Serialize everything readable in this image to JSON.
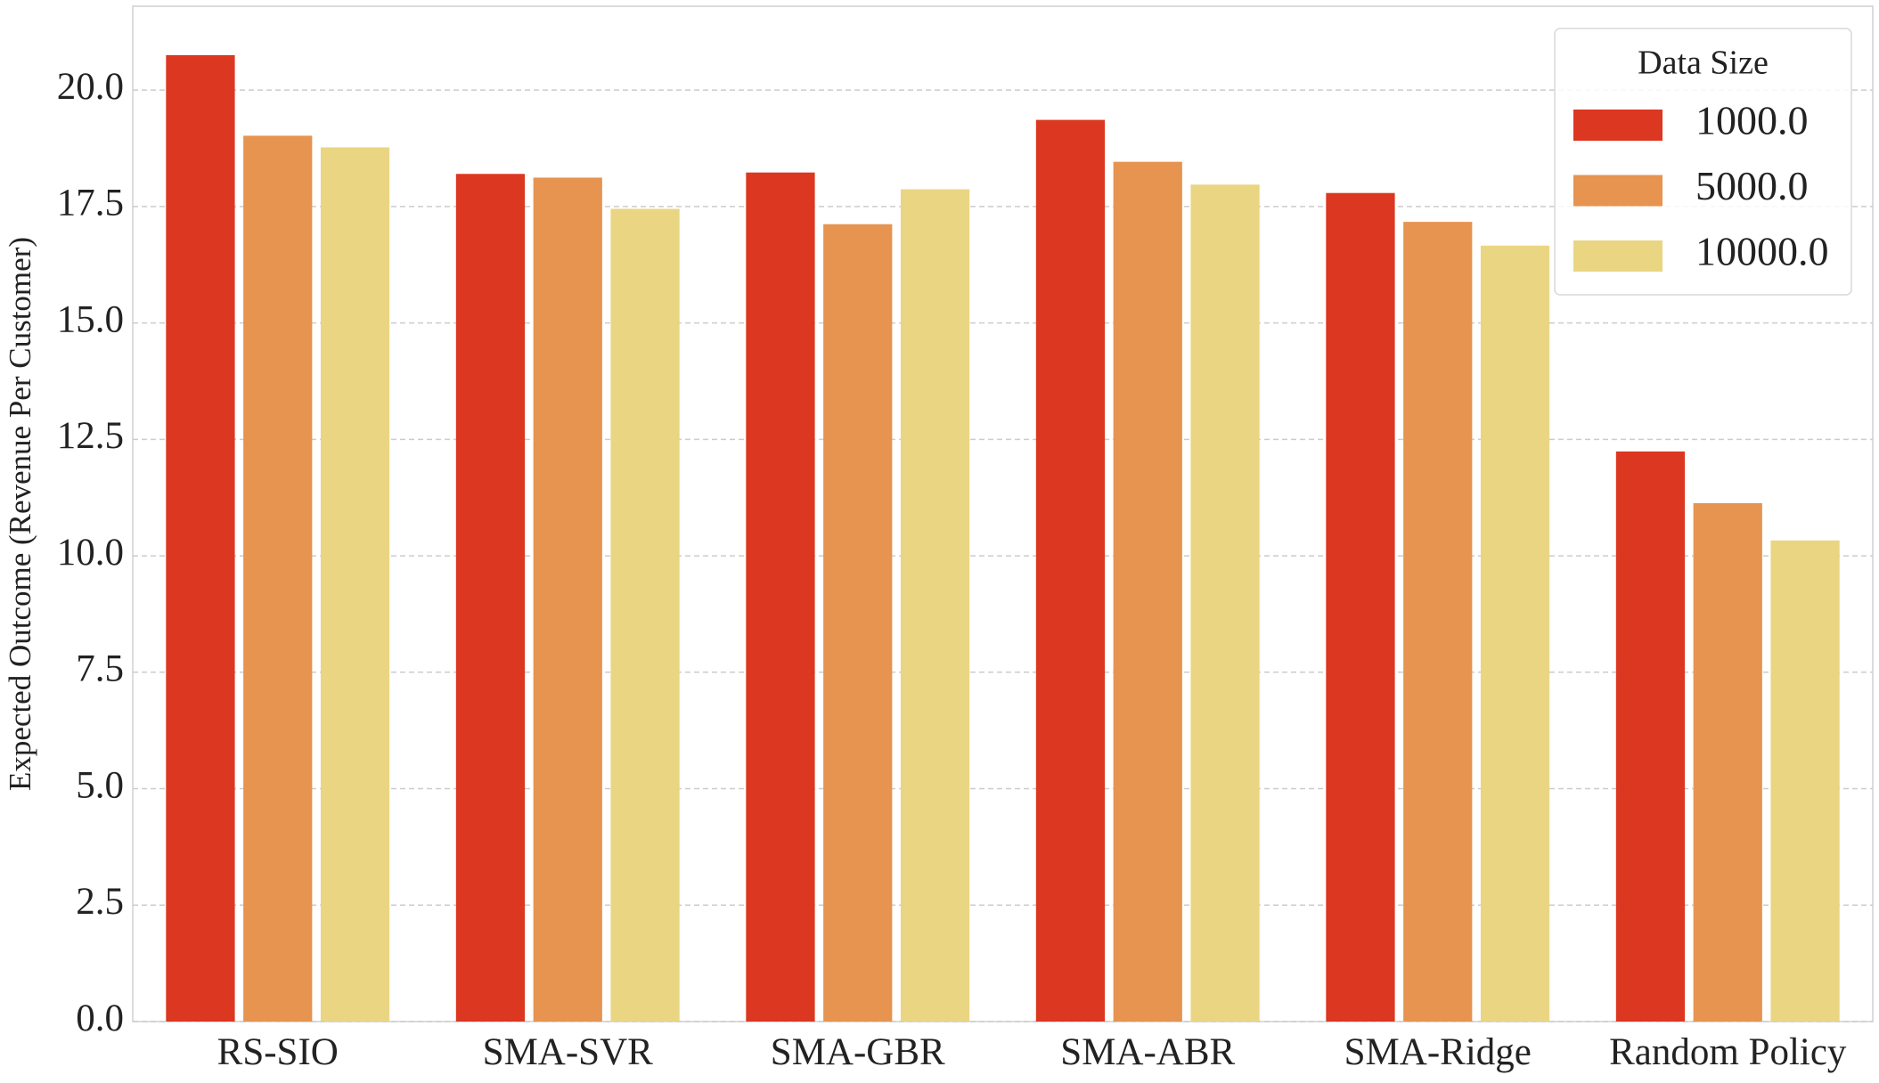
{
  "chart_data": {
    "type": "bar",
    "y_label": "Expected Outcome (Revenue Per Customer)",
    "categories": [
      "RS-SIO",
      "SMA-SVR",
      "SMA-GBR",
      "SMA-ABR",
      "SMA-Ridge",
      "Random Policy"
    ],
    "legend_title": "Data Size",
    "legend_position": "upper right",
    "grid": true,
    "series": [
      {
        "name": "1000.0",
        "color": "#dc3720",
        "values": [
          20.75,
          18.2,
          18.23,
          19.36,
          17.79,
          12.24
        ]
      },
      {
        "name": "5000.0",
        "color": "#e69450",
        "values": [
          19.02,
          18.12,
          17.12,
          18.46,
          17.17,
          11.13
        ]
      },
      {
        "name": "10000.0",
        "color": "#ead582",
        "values": [
          18.77,
          17.45,
          17.87,
          17.97,
          16.66,
          10.33
        ]
      }
    ],
    "ylim": [
      0,
      21.8
    ],
    "yticks": [
      {
        "value": 0,
        "label": "0.0"
      },
      2.5,
      {
        "value": 5,
        "label": "5.0"
      },
      7.5,
      {
        "value": 10,
        "label": "10.0"
      },
      12.5,
      {
        "value": 15,
        "label": "15.0"
      },
      17.5,
      {
        "value": 20,
        "label": "20.0"
      }
    ]
  }
}
